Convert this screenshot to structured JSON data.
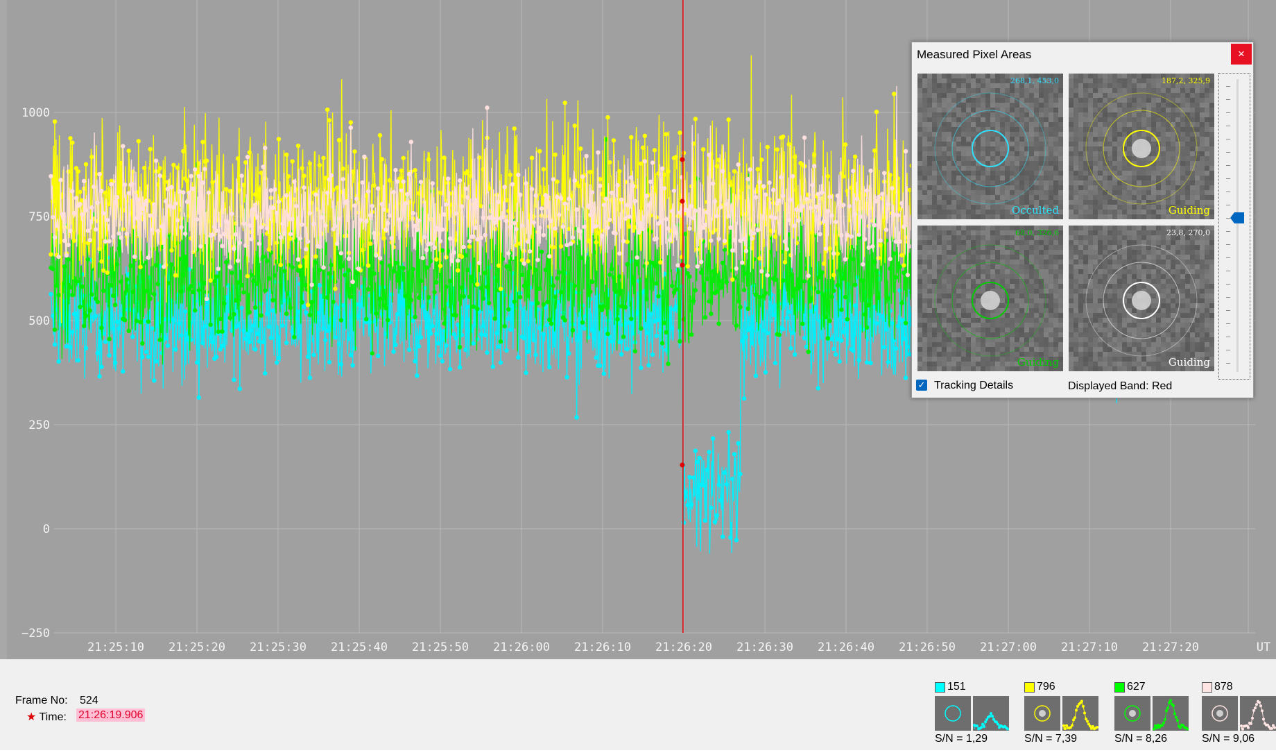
{
  "chart_data": {
    "type": "line",
    "y_ticks": [
      1000,
      750,
      500,
      250,
      0,
      -250
    ],
    "ylim": [
      -250,
      1270
    ],
    "x_ticks": [
      "21:25:10",
      "21:25:20",
      "21:25:30",
      "21:25:40",
      "21:25:50",
      "21:26:00",
      "21:26:10",
      "21:26:20",
      "21:26:30",
      "21:26:40",
      "21:26:50",
      "21:27:00",
      "21:27:10",
      "21:27:20"
    ],
    "x_unit": "UT",
    "cursor_time": "21:26:19.906",
    "grid": true,
    "series": [
      {
        "color": "#00f0ff",
        "baseline": 500,
        "event": {
          "start": "21:26:19.9",
          "end": "21:26:27",
          "level": 100
        }
      },
      {
        "color": "#ffff00",
        "baseline": 780
      },
      {
        "color": "#00ee00",
        "baseline": 600
      },
      {
        "color": "#ffdede",
        "baseline": 750
      }
    ]
  },
  "popup": {
    "title": "Measured Pixel Areas",
    "close_label": "×",
    "apertures": [
      {
        "coord": "268,1, 453,0",
        "name": "Occulted",
        "color": "#30e0ff"
      },
      {
        "coord": "187,2, 325,9",
        "name": "Guiding",
        "color": "#ffff00"
      },
      {
        "coord": "68,0, 326,6",
        "name": "Guiding",
        "color": "#00cc00"
      },
      {
        "coord": "23,8, 270,0",
        "name": "Guiding",
        "color": "#ffffff"
      }
    ],
    "tracking_label": "Tracking Details",
    "tracking_checked": true,
    "band_label": "Displayed Band: Red"
  },
  "status": {
    "frame_label": "Frame No:",
    "frame_value": "524",
    "time_star": "★",
    "time_label": "Time:",
    "time_value": "21:26:19.906"
  },
  "objects": [
    {
      "id": "151",
      "color": "#00ffff",
      "sn_label": "S/N =",
      "sn": "1,29"
    },
    {
      "id": "796",
      "color": "#ffff00",
      "sn_label": "S/N =",
      "sn": "7,39"
    },
    {
      "id": "627",
      "color": "#00ff00",
      "sn_label": "S/N =",
      "sn": "8,26"
    },
    {
      "id": "878",
      "color": "#ffe4e4",
      "sn_label": "S/N =",
      "sn": "9,06"
    }
  ]
}
